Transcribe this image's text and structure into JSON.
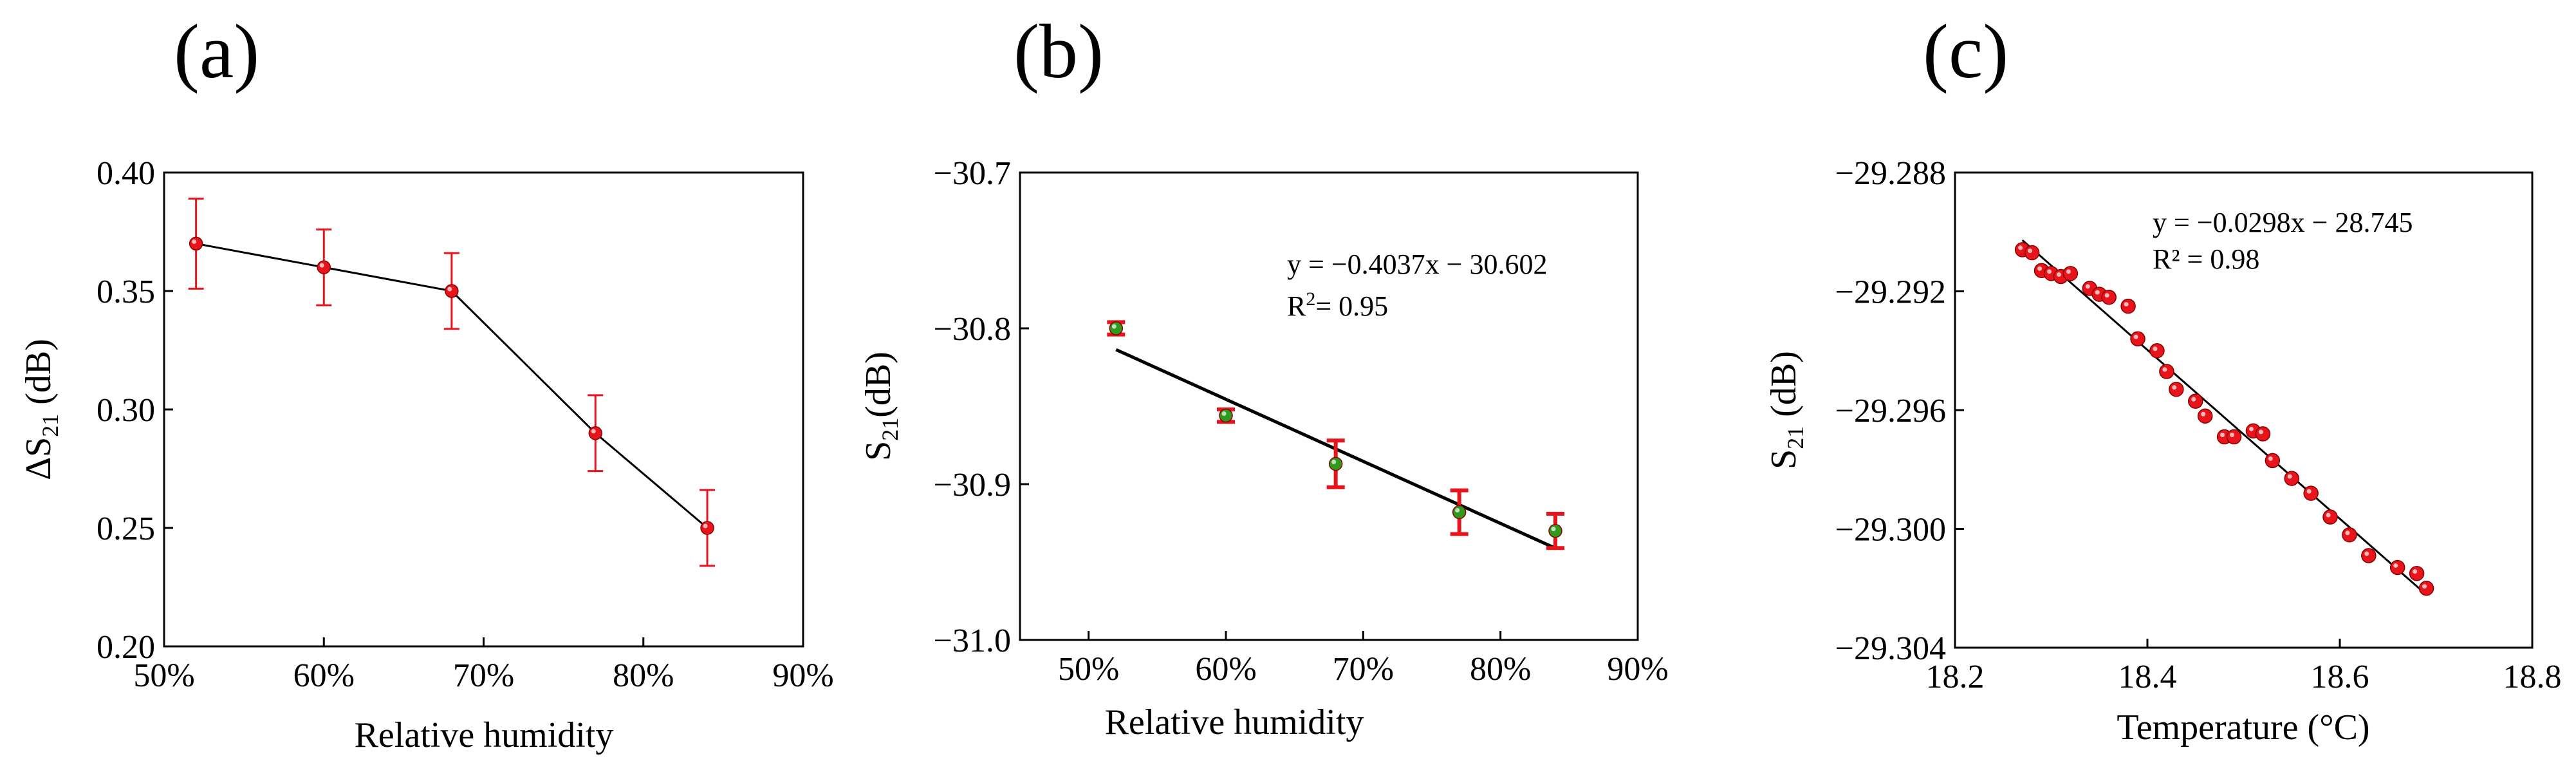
{
  "chart_data": [
    {
      "type": "line",
      "panel_label": "(a)",
      "xlabel": "Relative humidity",
      "ylabel": {
        "prefix": "ΔS",
        "sub": "21",
        "suffix": " (dB)"
      },
      "xlim": [
        50,
        90
      ],
      "ylim": [
        0.2,
        0.4
      ],
      "xticks": [
        "50%",
        "60%",
        "70%",
        "80%",
        "90%"
      ],
      "yticks": [
        "0.20",
        "0.25",
        "0.30",
        "0.35",
        "0.40"
      ],
      "x": [
        52,
        60,
        68,
        77,
        84
      ],
      "y": [
        0.37,
        0.36,
        0.35,
        0.29,
        0.25
      ],
      "err": [
        0.019,
        0.016,
        0.016,
        0.016,
        0.016
      ],
      "point_color": "#e8141c",
      "errorbar_color": "#e8141c",
      "line_color": "#000000"
    },
    {
      "type": "scatter",
      "panel_label": "(b)",
      "xlabel": "Relative humidity",
      "ylabel": {
        "prefix": "S",
        "sub": "21",
        "suffix": "(dB)"
      },
      "xlim": [
        45,
        90
      ],
      "ylim": [
        -31.0,
        -30.7
      ],
      "xticks": [
        "50%",
        "60%",
        "70%",
        "80%",
        "90%"
      ],
      "yticks": [
        "−31.0",
        "−30.9",
        "−30.8",
        "−30.7"
      ],
      "x": [
        52,
        60,
        68,
        77,
        84
      ],
      "y": [
        -30.8,
        -30.856,
        -30.887,
        -30.918,
        -30.93
      ],
      "err": [
        0.004,
        0.004,
        0.015,
        0.014,
        0.011
      ],
      "fit": {
        "slope": -0.4037,
        "intercept": -30.602,
        "x_from": 52,
        "x_to": 84
      },
      "equation": "y = −0.4037x − 30.602",
      "r2": {
        "label": "R",
        "sup": "2",
        "value": "= 0.95"
      },
      "point_color": "#2e9b1e",
      "errorbar_color": "#e8141c",
      "line_color": "#000000"
    },
    {
      "type": "scatter",
      "panel_label": "(c)",
      "xlabel": "Temperature (°C)",
      "ylabel": {
        "prefix": "S",
        "sub": "21",
        "suffix": " (dB)"
      },
      "xlim": [
        18.2,
        18.8
      ],
      "ylim": [
        -29.304,
        -29.288
      ],
      "xticks": [
        "18.2",
        "18.4",
        "18.6",
        "18.8"
      ],
      "yticks": [
        "−29.304",
        "−29.300",
        "−29.296",
        "−29.292",
        "−29.288"
      ],
      "x": [
        18.27,
        18.28,
        18.29,
        18.3,
        18.31,
        18.32,
        18.34,
        18.35,
        18.36,
        18.38,
        18.39,
        18.41,
        18.42,
        18.43,
        18.45,
        18.46,
        18.48,
        18.49,
        18.51,
        18.52,
        18.53,
        18.55,
        18.57,
        18.59,
        18.61,
        18.63,
        18.66,
        18.68,
        18.69
      ],
      "y": [
        -29.2906,
        -29.2907,
        -29.2913,
        -29.2914,
        -29.2915,
        -29.2914,
        -29.2919,
        -29.2921,
        -29.2922,
        -29.2925,
        -29.2936,
        -29.294,
        -29.2947,
        -29.2953,
        -29.2957,
        -29.2962,
        -29.2969,
        -29.2969,
        -29.2967,
        -29.2968,
        -29.2977,
        -29.2983,
        -29.2988,
        -29.2996,
        -29.3002,
        -29.3009,
        -29.3013,
        -29.3015,
        -29.302
      ],
      "fit": {
        "slope": -0.0298,
        "intercept": -28.745,
        "x_from": 18.27,
        "x_to": 18.69
      },
      "equation": "y = −0.0298x − 28.745",
      "r2": {
        "label": "R² = 0.98"
      },
      "point_color": "#e8141c",
      "line_color": "#000000"
    }
  ]
}
